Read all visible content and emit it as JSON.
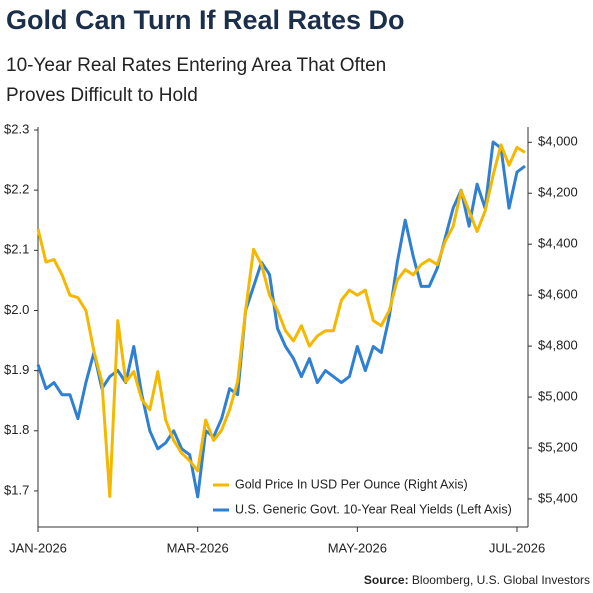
{
  "chart_data": {
    "type": "line",
    "title": "Gold Can Turn If Real Rates Do",
    "subtitle": [
      "10-Year Real Rates Entering Area That Often",
      "Proves Difficult to Hold"
    ],
    "categories": [
      "JAN-2026",
      null,
      null,
      null,
      null,
      null,
      null,
      null,
      null,
      null,
      null,
      null,
      null,
      null,
      null,
      null,
      null,
      null,
      null,
      null,
      "MAR-2026",
      null,
      null,
      null,
      null,
      null,
      null,
      null,
      null,
      null,
      null,
      null,
      null,
      null,
      null,
      null,
      null,
      null,
      null,
      null,
      "MAY-2026",
      null,
      null,
      null,
      null,
      null,
      null,
      null,
      null,
      null,
      null,
      null,
      null,
      null,
      null,
      null,
      null,
      null,
      null,
      null,
      "JUL-2026",
      null
    ],
    "series": [
      {
        "name": "Gold Price In USD Per Ounce (Right Axis)",
        "color": "#f5b800",
        "axis": "y2",
        "values": [
          4340,
          4470,
          4460,
          4520,
          4600,
          4610,
          4660,
          4820,
          4940,
          5390,
          4700,
          4940,
          4900,
          5010,
          5050,
          4900,
          5090,
          5170,
          5220,
          5250,
          5290,
          5090,
          5170,
          5130,
          5050,
          4940,
          4660,
          4420,
          4480,
          4600,
          4660,
          4740,
          4780,
          4720,
          4800,
          4760,
          4740,
          4740,
          4620,
          4580,
          4600,
          4580,
          4700,
          4720,
          4660,
          4540,
          4500,
          4520,
          4480,
          4460,
          4480,
          4390,
          4330,
          4190,
          4270,
          4350,
          4270,
          4130,
          4010,
          4090,
          4020,
          4040
        ]
      },
      {
        "name": "U.S. Generic Govt. 10-Year Real Yields (Left Axis)",
        "color": "#2f80d2",
        "axis": "y",
        "values": [
          1.91,
          1.87,
          1.88,
          1.86,
          1.86,
          1.82,
          1.88,
          1.93,
          1.87,
          1.89,
          1.9,
          1.88,
          1.94,
          1.86,
          1.8,
          1.77,
          1.78,
          1.8,
          1.77,
          1.76,
          1.69,
          1.8,
          1.79,
          1.82,
          1.87,
          1.86,
          2.0,
          2.04,
          2.08,
          2.06,
          1.97,
          1.94,
          1.92,
          1.89,
          1.92,
          1.88,
          1.9,
          1.89,
          1.88,
          1.89,
          1.94,
          1.9,
          1.94,
          1.93,
          1.99,
          2.08,
          2.15,
          2.09,
          2.04,
          2.04,
          2.07,
          2.12,
          2.17,
          2.2,
          2.14,
          2.21,
          2.17,
          2.28,
          2.27,
          2.17,
          2.23,
          2.24
        ]
      }
    ],
    "ylim": [
      1.64,
      2.305
    ],
    "yticks": [
      {
        "value": 1.7,
        "label": "$1.7"
      },
      {
        "value": 1.8,
        "label": "$1.8"
      },
      {
        "value": 1.9,
        "label": "$1.9"
      },
      {
        "value": 2.0,
        "label": "$2.0"
      },
      {
        "value": 2.1,
        "label": "$2.1"
      },
      {
        "value": 2.2,
        "label": "$2.2"
      },
      {
        "value": 2.3,
        "label": "$2.3"
      }
    ],
    "y2lim": [
      5510,
      3940
    ],
    "y2ticks": [
      {
        "value": 4000,
        "label": "$4,000"
      },
      {
        "value": 4200,
        "label": "$4,200"
      },
      {
        "value": 4400,
        "label": "$4,400"
      },
      {
        "value": 4600,
        "label": "$4,600"
      },
      {
        "value": 4800,
        "label": "$4,800"
      },
      {
        "value": 5000,
        "label": "$5,000"
      },
      {
        "value": 5200,
        "label": "$5,200"
      },
      {
        "value": 5400,
        "label": "$5,400"
      }
    ],
    "legend": "lower-right",
    "source_label": "Source:",
    "source": "Bloomberg, U.S. Global Investors"
  }
}
